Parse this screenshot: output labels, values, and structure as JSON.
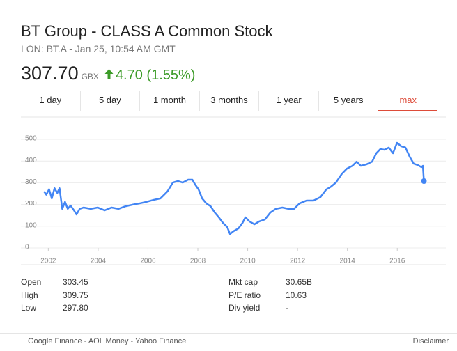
{
  "header": {
    "title": "BT Group - CLASS A Common Stock",
    "subtitle": "LON: BT.A - Jan 25, 10:54 AM GMT",
    "price": "307.70",
    "currency": "GBX",
    "change": "4.70 (1.55%)"
  },
  "tabs": [
    "1 day",
    "5 day",
    "1 month",
    "3 months",
    "1 year",
    "5 years",
    "max"
  ],
  "active_tab": 6,
  "chart_data": {
    "type": "line",
    "x": [
      2001.83,
      2001.92,
      2002.03,
      2002.14,
      2002.25,
      2002.36,
      2002.45,
      2002.56,
      2002.67,
      2002.78,
      2002.89,
      2003.03,
      2003.13,
      2003.26,
      2003.42,
      2003.7,
      2003.98,
      2004.26,
      2004.54,
      2004.82,
      2005.1,
      2005.38,
      2005.66,
      2005.94,
      2006.22,
      2006.5,
      2006.78,
      2007.0,
      2007.2,
      2007.39,
      2007.61,
      2007.78,
      2007.89,
      2008.03,
      2008.17,
      2008.34,
      2008.51,
      2008.68,
      2008.84,
      2009.01,
      2009.18,
      2009.29,
      2009.43,
      2009.63,
      2009.79,
      2009.91,
      2010.07,
      2010.27,
      2010.46,
      2010.69,
      2010.91,
      2011.13,
      2011.39,
      2011.64,
      2011.86,
      2012.08,
      2012.36,
      2012.64,
      2012.92,
      2013.15,
      2013.34,
      2013.54,
      2013.77,
      2013.98,
      2014.2,
      2014.37,
      2014.54,
      2014.77,
      2014.99,
      2015.16,
      2015.32,
      2015.49,
      2015.66,
      2015.83,
      2015.99,
      2016.16,
      2016.33,
      2016.5,
      2016.66,
      2016.83,
      2016.97,
      2017.03,
      2017.07
    ],
    "series": [
      {
        "color": "#4285f4",
        "values": [
          260,
          245,
          270,
          228,
          275,
          253,
          275,
          180,
          212,
          180,
          195,
          173,
          154,
          180,
          186,
          180,
          186,
          173,
          186,
          180,
          192,
          199,
          205,
          212,
          221,
          228,
          260,
          301,
          308,
          301,
          314,
          314,
          292,
          269,
          228,
          205,
          192,
          163,
          141,
          115,
          96,
          64,
          77,
          90,
          115,
          141,
          122,
          109,
          122,
          131,
          163,
          180,
          186,
          180,
          180,
          205,
          218,
          218,
          234,
          269,
          282,
          301,
          340,
          365,
          378,
          397,
          378,
          385,
          397,
          436,
          455,
          452,
          462,
          436,
          484,
          468,
          462,
          420,
          388,
          381,
          372,
          378,
          307.7
        ]
      }
    ],
    "xlim": [
      2000.9,
      2017.95
    ],
    "ylim": [
      0,
      550
    ],
    "xticks": [
      2002,
      2004,
      2006,
      2008,
      2010,
      2012,
      2014,
      2016
    ],
    "yticks": [
      0,
      100,
      200,
      300,
      400,
      500
    ],
    "grid": true
  },
  "stats_left": [
    [
      "Open",
      "303.45"
    ],
    [
      "High",
      "309.75"
    ],
    [
      "Low",
      "297.80"
    ]
  ],
  "stats_right": [
    [
      "Mkt cap",
      "30.65B"
    ],
    [
      "P/E ratio",
      "10.63"
    ],
    [
      "Div yield",
      "-"
    ]
  ],
  "footer": {
    "sources": "Google Finance - AOL Money - Yahoo Finance",
    "disclaimer": "Disclaimer"
  }
}
